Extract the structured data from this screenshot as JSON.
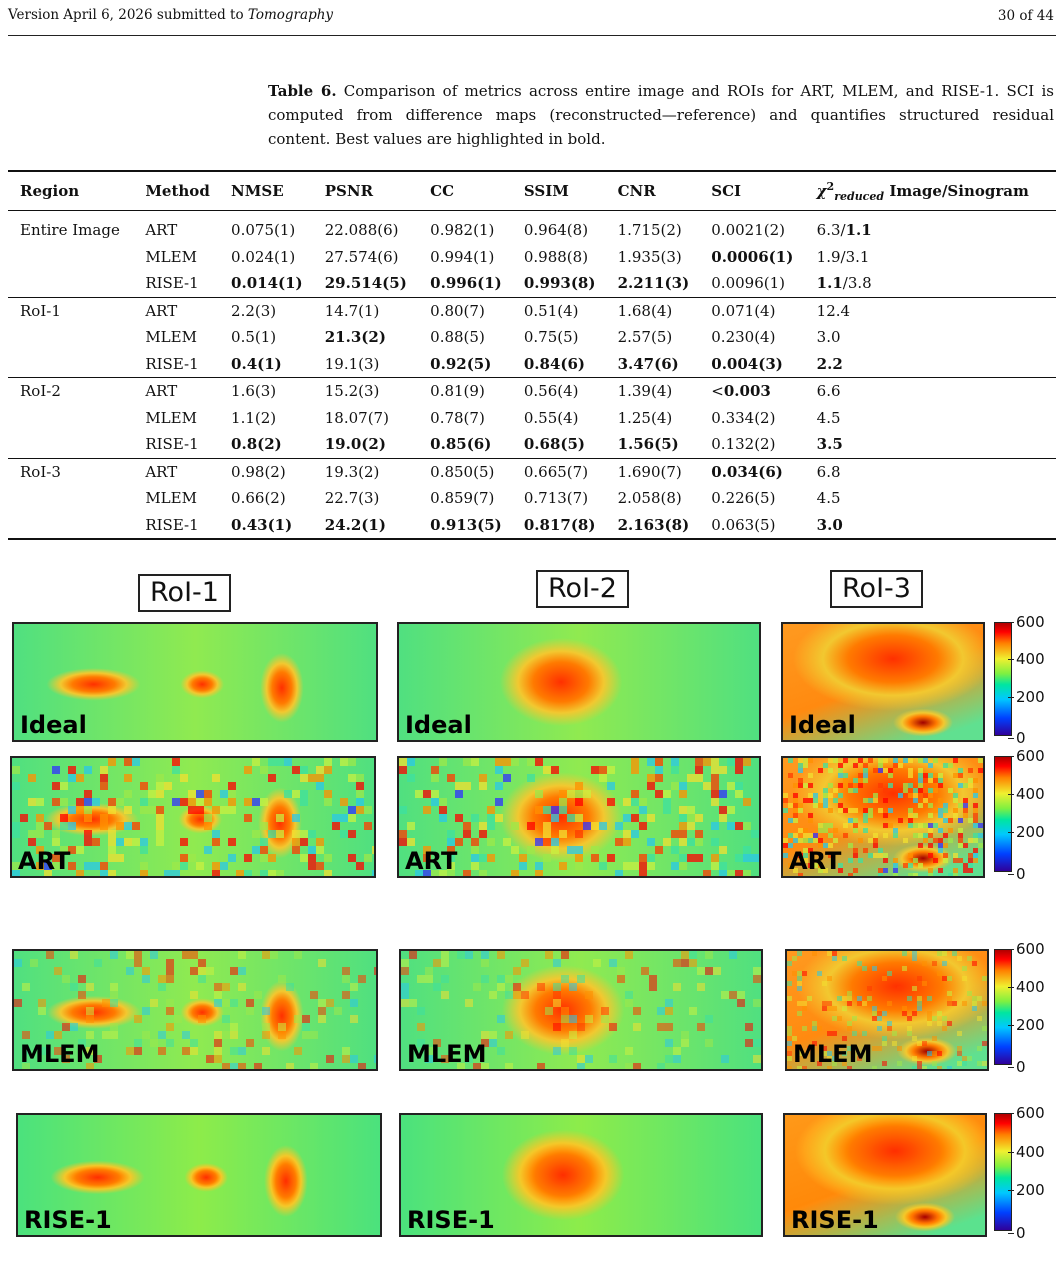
{
  "header": {
    "version_text": "Version April 6, 2026 submitted to ",
    "journal": "Tomography",
    "page": "30 of 44"
  },
  "caption": {
    "label": "Table 6.",
    "text": "Comparison of metrics across entire image and ROIs for ART, MLEM, and RISE-1. SCI is computed from difference maps (reconstructed—reference) and quantifies structured residual content. Best values are highlighted in bold."
  },
  "table": {
    "headers": {
      "region": "Region",
      "method": "Method",
      "nmse": "NMSE",
      "psnr": "PSNR",
      "cc": "CC",
      "ssim": "SSIM",
      "cnr": "CNR",
      "sci": "SCI",
      "chi_symbol": "χ",
      "chi_sup": "2",
      "chi_sub": "reduced",
      "chi_rest": "Image/Sinogram"
    },
    "rows": [
      {
        "region": "Entire Image",
        "method": "ART",
        "nmse": "0.075(1)",
        "psnr": "22.088(6)",
        "cc": "0.982(1)",
        "ssim": "0.964(8)",
        "cnr": "1.715(2)",
        "sci": "0.0021(2)",
        "chi_a": "6.3",
        "chi_sep": "/",
        "chi_b": "1.1"
      },
      {
        "region": "",
        "method": "MLEM",
        "nmse": "0.024(1)",
        "psnr": "27.574(6)",
        "cc": "0.994(1)",
        "ssim": "0.988(8)",
        "cnr": "1.935(3)",
        "sci": "0.0006(1)",
        "chi_a": "1.9",
        "chi_sep": "/",
        "chi_b": "3.1"
      },
      {
        "region": "",
        "method": "RISE-1",
        "nmse": "0.014(1)",
        "psnr": "29.514(5)",
        "cc": "0.996(1)",
        "ssim": "0.993(8)",
        "cnr": "2.211(3)",
        "sci": "0.0096(1)",
        "chi_a": "1.1",
        "chi_sep": "/",
        "chi_b": "3.8"
      },
      {
        "region": "RoI-1",
        "method": "ART",
        "nmse": "2.2(3)",
        "psnr": "14.7(1)",
        "cc": "0.80(7)",
        "ssim": "0.51(4)",
        "cnr": "1.68(4)",
        "sci": "0.071(4)",
        "chi_a": "12.4",
        "chi_sep": "",
        "chi_b": ""
      },
      {
        "region": "",
        "method": "MLEM",
        "nmse": "0.5(1)",
        "psnr": "21.3(2)",
        "cc": "0.88(5)",
        "ssim": "0.75(5)",
        "cnr": "2.57(5)",
        "sci": "0.230(4)",
        "chi_a": "3.0",
        "chi_sep": "",
        "chi_b": ""
      },
      {
        "region": "",
        "method": "RISE-1",
        "nmse": "0.4(1)",
        "psnr": "19.1(3)",
        "cc": "0.92(5)",
        "ssim": "0.84(6)",
        "cnr": "3.47(6)",
        "sci": "0.004(3)",
        "chi_a": "2.2",
        "chi_sep": "",
        "chi_b": ""
      },
      {
        "region": "RoI-2",
        "method": "ART",
        "nmse": "1.6(3)",
        "psnr": "15.2(3)",
        "cc": "0.81(9)",
        "ssim": "0.56(4)",
        "cnr": "1.39(4)",
        "sci_prefix": "<",
        "sci": "0.003",
        "chi_a": "6.6",
        "chi_sep": "",
        "chi_b": ""
      },
      {
        "region": "",
        "method": "MLEM",
        "nmse": "1.1(2)",
        "psnr": "18.07(7)",
        "cc": "0.78(7)",
        "ssim": "0.55(4)",
        "cnr": "1.25(4)",
        "sci": "0.334(2)",
        "chi_a": "4.5",
        "chi_sep": "",
        "chi_b": ""
      },
      {
        "region": "",
        "method": "RISE-1",
        "nmse": "0.8(2)",
        "psnr": "19.0(2)",
        "cc": "0.85(6)",
        "ssim": "0.68(5)",
        "cnr": "1.56(5)",
        "sci": "0.132(2)",
        "chi_a": "3.5",
        "chi_sep": "",
        "chi_b": ""
      },
      {
        "region": "RoI-3",
        "method": "ART",
        "nmse": "0.98(2)",
        "psnr": "19.3(2)",
        "cc": "0.850(5)",
        "ssim": "0.665(7)",
        "cnr": "1.690(7)",
        "sci": "0.034(6)",
        "chi_a": "6.8",
        "chi_sep": "",
        "chi_b": ""
      },
      {
        "region": "",
        "method": "MLEM",
        "nmse": "0.66(2)",
        "psnr": "22.7(3)",
        "cc": "0.859(7)",
        "ssim": "0.713(7)",
        "cnr": "2.058(8)",
        "sci": "0.226(5)",
        "chi_a": "4.5",
        "chi_sep": "",
        "chi_b": ""
      },
      {
        "region": "",
        "method": "RISE-1",
        "nmse": "0.43(1)",
        "psnr": "24.2(1)",
        "cc": "0.913(5)",
        "ssim": "0.817(8)",
        "cnr": "2.163(8)",
        "sci": "0.063(5)",
        "chi_a": "3.0",
        "chi_sep": "",
        "chi_b": ""
      }
    ]
  },
  "figure": {
    "columns": [
      "RoI-1",
      "RoI-2",
      "RoI-3"
    ],
    "rows": [
      "Ideal",
      "ART",
      "MLEM",
      "RISE-1"
    ],
    "colorbar_ticks": [
      "600",
      "400",
      "200",
      "0"
    ],
    "colorbar_range": [
      0,
      600
    ]
  }
}
